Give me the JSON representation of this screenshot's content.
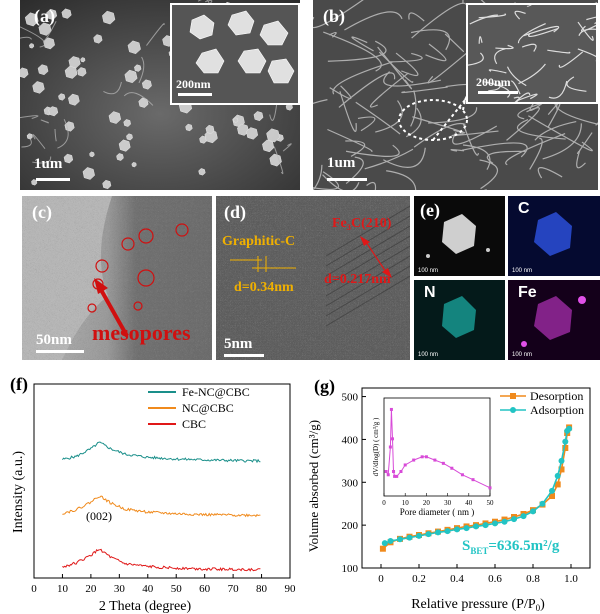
{
  "panels": {
    "a": {
      "label": "(a)",
      "scale": "1um",
      "inset_scale": "200nm"
    },
    "b": {
      "label": "(b)",
      "scale": "1um",
      "inset_scale": "200nm"
    },
    "c": {
      "label": "(c)",
      "scale": "50nm",
      "annotation": "mesopores"
    },
    "d": {
      "label": "(d)",
      "scale": "5nm",
      "graphitic": "Graphitic-C",
      "d1": "d=0.34nm",
      "fe3c": "Fe₃C(210)",
      "d2": "d=0.217nm"
    },
    "e": {
      "label": "(e)",
      "tiles": [
        "",
        "C",
        "N",
        "Fe"
      ],
      "tile_scale": "100 nm"
    },
    "f": {
      "label": "(f)",
      "peak": "(002)"
    },
    "g": {
      "label": "(g)",
      "bet": "S",
      "bet_sub": "BET",
      "bet_value": "=636.5m²/g"
    }
  },
  "colors": {
    "teal": "#1a8f8a",
    "orange": "#f08a1c",
    "red": "#e01818",
    "cyan": "#22c4c4",
    "magenta": "#d84ad8",
    "annot": "#d01010",
    "gold": "#f0b000"
  },
  "chart_data": [
    {
      "type": "line",
      "xlabel": "2 Theta (degree)",
      "ylabel": "Intensity (a.u.)",
      "xlim": [
        0,
        90
      ],
      "xticks": [
        "0",
        "10",
        "20",
        "30",
        "40",
        "50",
        "60",
        "70",
        "80",
        "90"
      ],
      "legend_position": "top-right",
      "series": [
        {
          "name": "Fe-NC@CBC",
          "color": "#1a8f8a",
          "offset": 3,
          "x": [
            10,
            15,
            20,
            23,
            27,
            32,
            40,
            50,
            60,
            70,
            80
          ],
          "y": [
            0.1,
            0.25,
            0.6,
            0.9,
            0.6,
            0.35,
            0.2,
            0.12,
            0.08,
            0.05,
            0.03
          ]
        },
        {
          "name": "NC@CBC",
          "color": "#f08a1c",
          "offset": 1.6,
          "x": [
            10,
            15,
            20,
            23,
            27,
            32,
            40,
            50,
            60,
            70,
            80
          ],
          "y": [
            0.12,
            0.3,
            0.65,
            0.95,
            0.6,
            0.32,
            0.18,
            0.1,
            0.06,
            0.04,
            0.03
          ]
        },
        {
          "name": "CBC",
          "color": "#e01818",
          "offset": 0.2,
          "x": [
            10,
            15,
            20,
            23,
            27,
            32,
            40,
            50,
            60,
            70,
            80
          ],
          "y": [
            0.15,
            0.35,
            0.7,
            1.0,
            0.6,
            0.3,
            0.17,
            0.1,
            0.06,
            0.04,
            0.03
          ]
        }
      ]
    },
    {
      "type": "line",
      "xlabel": "Relative pressure (P/P",
      "xlabel_sub": "0",
      "ylabel": "Volume absorbed (cm³/g)",
      "xlim": [
        -0.1,
        1.1
      ],
      "ylim": [
        100,
        520
      ],
      "xticks": [
        "0",
        "0.2",
        "0.4",
        "0.6",
        "0.8",
        "1.0"
      ],
      "yticks": [
        "100",
        "200",
        "300",
        "400",
        "500"
      ],
      "legend_position": "top-right",
      "series": [
        {
          "name": "Desorption",
          "color": "#f08a1c",
          "marker": "square",
          "x": [
            0.01,
            0.05,
            0.1,
            0.15,
            0.2,
            0.25,
            0.3,
            0.35,
            0.4,
            0.45,
            0.5,
            0.55,
            0.6,
            0.65,
            0.7,
            0.75,
            0.8,
            0.85,
            0.9,
            0.93,
            0.95,
            0.97,
            0.98,
            0.99
          ],
          "y": [
            145,
            160,
            168,
            173,
            177,
            181,
            185,
            189,
            193,
            197,
            200,
            204,
            208,
            213,
            219,
            226,
            235,
            248,
            268,
            295,
            330,
            380,
            415,
            428
          ]
        },
        {
          "name": "Adsorption",
          "color": "#22c4c4",
          "marker": "circle",
          "x": [
            0.02,
            0.05,
            0.1,
            0.15,
            0.2,
            0.25,
            0.3,
            0.35,
            0.4,
            0.45,
            0.5,
            0.55,
            0.6,
            0.65,
            0.7,
            0.75,
            0.8,
            0.85,
            0.9,
            0.93,
            0.95,
            0.97,
            0.98,
            0.99
          ],
          "y": [
            158,
            163,
            167,
            171,
            175,
            179,
            183,
            186,
            190,
            193,
            197,
            200,
            204,
            208,
            214,
            221,
            232,
            250,
            280,
            315,
            350,
            395,
            420,
            425
          ]
        }
      ]
    },
    {
      "type": "line",
      "xlabel": "Pore diameter ( nm )",
      "ylabel": "dV/dlog(D) ( cm³/g )",
      "xlim": [
        0,
        50
      ],
      "xticks": [
        "0",
        "10",
        "20",
        "30",
        "40",
        "50"
      ],
      "series": [
        {
          "name": "",
          "color": "#d84ad8",
          "marker": "square",
          "x": [
            1,
            2,
            3,
            3.5,
            4,
            4.5,
            5,
            6,
            8,
            10,
            14,
            18,
            20,
            24,
            28,
            32,
            37,
            42,
            50
          ],
          "y": [
            0.3,
            0.28,
            0.45,
            0.68,
            0.5,
            0.3,
            0.27,
            0.27,
            0.3,
            0.34,
            0.37,
            0.39,
            0.39,
            0.37,
            0.35,
            0.32,
            0.28,
            0.25,
            0.2
          ]
        }
      ]
    }
  ]
}
